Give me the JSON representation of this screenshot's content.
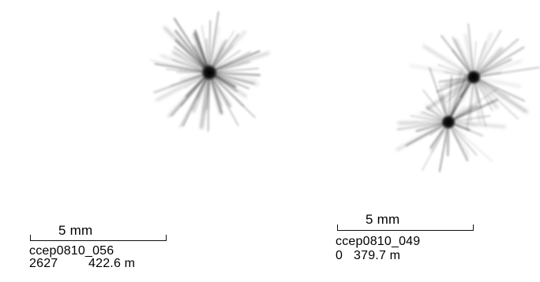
{
  "image": {
    "background": "#ffffff",
    "specimen_color": "#1a1a1a"
  },
  "left_panel": {
    "scale_label": "5 mm",
    "sample_id": "ccep0810_056",
    "count": "2627",
    "measure": "422.6 m"
  },
  "right_panel": {
    "scale_label": "5 mm",
    "sample_id": "ccep0810_049",
    "count": "0",
    "measure": "379.7 m"
  }
}
